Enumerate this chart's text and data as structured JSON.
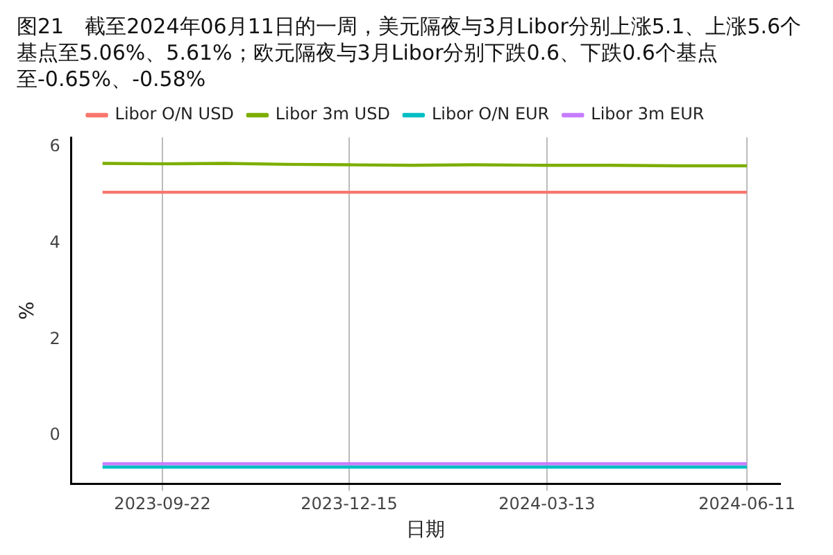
{
  "chart_data": {
    "type": "line",
    "title": "图21　截至2024年06月11日的一周，美元隔夜与3月Libor分别上涨5.1、上涨5.6个基点至5.06%、5.61%；欧元隔夜与3月Libor分别下跌0.6、下跌0.6个基点至-0.65%、-0.58%",
    "xlabel": "日期",
    "ylabel": "%",
    "x": [
      "2023-08-26",
      "2023-09-22",
      "2023-10-20",
      "2023-11-17",
      "2023-12-15",
      "2024-01-12",
      "2024-02-09",
      "2024-03-13",
      "2024-04-10",
      "2024-05-10",
      "2024-06-11"
    ],
    "series": [
      {
        "name": "Libor O/N USD",
        "color": "#f8766d",
        "values": [
          5.06,
          5.06,
          5.06,
          5.06,
          5.06,
          5.06,
          5.06,
          5.06,
          5.06,
          5.06,
          5.06
        ]
      },
      {
        "name": "Libor 3m USD",
        "color": "#7cae00",
        "values": [
          5.66,
          5.65,
          5.66,
          5.64,
          5.63,
          5.62,
          5.63,
          5.62,
          5.62,
          5.61,
          5.61
        ]
      },
      {
        "name": "Libor O/N EUR",
        "color": "#00bfc4",
        "values": [
          -0.65,
          -0.65,
          -0.65,
          -0.65,
          -0.65,
          -0.65,
          -0.65,
          -0.65,
          -0.65,
          -0.65,
          -0.65
        ]
      },
      {
        "name": "Libor 3m EUR",
        "color": "#c77cff",
        "values": [
          -0.58,
          -0.58,
          -0.58,
          -0.58,
          -0.58,
          -0.58,
          -0.58,
          -0.58,
          -0.58,
          -0.58,
          -0.58
        ]
      }
    ],
    "xlim": [
      "2023-08-12",
      "2024-06-26"
    ],
    "xticks": [
      "2023-09-22",
      "2023-12-15",
      "2024-03-13",
      "2024-06-11"
    ],
    "ylim": [
      -1,
      6.2
    ],
    "yticks": [
      0,
      2,
      4,
      6
    ],
    "grid": "x",
    "legend": "top",
    "marker": "none",
    "line_style": "solid"
  }
}
